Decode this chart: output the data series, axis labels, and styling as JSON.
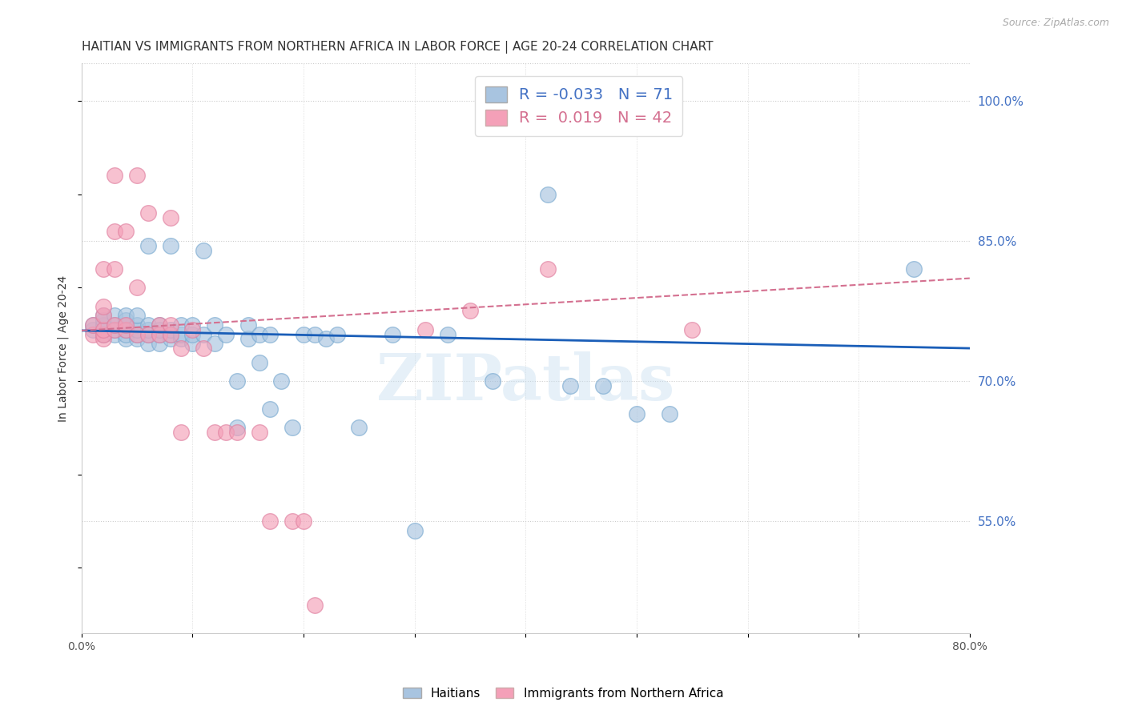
{
  "title": "HAITIAN VS IMMIGRANTS FROM NORTHERN AFRICA IN LABOR FORCE | AGE 20-24 CORRELATION CHART",
  "source": "Source: ZipAtlas.com",
  "ylabel": "In Labor Force | Age 20-24",
  "right_yticks": [
    0.55,
    0.7,
    0.85,
    1.0
  ],
  "right_yticklabels": [
    "55.0%",
    "70.0%",
    "85.0%",
    "100.0%"
  ],
  "xlim": [
    0.0,
    0.8
  ],
  "ylim": [
    0.43,
    1.04
  ],
  "xticks": [
    0.0,
    0.1,
    0.2,
    0.3,
    0.4,
    0.5,
    0.6,
    0.7,
    0.8
  ],
  "xticklabels": [
    "0.0%",
    "",
    "",
    "",
    "",
    "",
    "",
    "",
    "80.0%"
  ],
  "legend_blue_R": "-0.033",
  "legend_blue_N": "71",
  "legend_pink_R": "0.019",
  "legend_pink_N": "42",
  "blue_color": "#a8c4e0",
  "pink_color": "#f4a0b8",
  "blue_line_color": "#1a5eb8",
  "pink_line_color": "#d47090",
  "watermark": "ZIPatlas",
  "blue_trend_x": [
    0.0,
    0.8
  ],
  "blue_trend_y": [
    0.754,
    0.735
  ],
  "pink_trend_x": [
    0.0,
    0.8
  ],
  "pink_trend_y": [
    0.754,
    0.81
  ],
  "blue_x": [
    0.01,
    0.01,
    0.02,
    0.02,
    0.02,
    0.02,
    0.02,
    0.03,
    0.03,
    0.03,
    0.03,
    0.04,
    0.04,
    0.04,
    0.04,
    0.04,
    0.04,
    0.05,
    0.05,
    0.05,
    0.05,
    0.05,
    0.06,
    0.06,
    0.06,
    0.06,
    0.06,
    0.07,
    0.07,
    0.07,
    0.07,
    0.08,
    0.08,
    0.08,
    0.08,
    0.09,
    0.09,
    0.09,
    0.1,
    0.1,
    0.1,
    0.11,
    0.11,
    0.12,
    0.12,
    0.13,
    0.14,
    0.14,
    0.15,
    0.15,
    0.16,
    0.16,
    0.17,
    0.17,
    0.18,
    0.19,
    0.2,
    0.21,
    0.22,
    0.23,
    0.25,
    0.28,
    0.3,
    0.33,
    0.37,
    0.42,
    0.44,
    0.47,
    0.5,
    0.53,
    0.75
  ],
  "blue_y": [
    0.755,
    0.76,
    0.75,
    0.755,
    0.76,
    0.765,
    0.77,
    0.75,
    0.755,
    0.76,
    0.77,
    0.745,
    0.75,
    0.755,
    0.76,
    0.765,
    0.77,
    0.745,
    0.75,
    0.755,
    0.76,
    0.77,
    0.74,
    0.75,
    0.755,
    0.76,
    0.845,
    0.74,
    0.75,
    0.755,
    0.76,
    0.745,
    0.75,
    0.755,
    0.845,
    0.745,
    0.75,
    0.76,
    0.74,
    0.75,
    0.76,
    0.75,
    0.84,
    0.74,
    0.76,
    0.75,
    0.7,
    0.65,
    0.745,
    0.76,
    0.72,
    0.75,
    0.67,
    0.75,
    0.7,
    0.65,
    0.75,
    0.75,
    0.745,
    0.75,
    0.65,
    0.75,
    0.54,
    0.75,
    0.7,
    0.9,
    0.695,
    0.695,
    0.665,
    0.665,
    0.82
  ],
  "pink_x": [
    0.01,
    0.01,
    0.02,
    0.02,
    0.02,
    0.02,
    0.02,
    0.02,
    0.03,
    0.03,
    0.03,
    0.03,
    0.03,
    0.04,
    0.04,
    0.04,
    0.05,
    0.05,
    0.05,
    0.06,
    0.06,
    0.07,
    0.07,
    0.08,
    0.08,
    0.08,
    0.09,
    0.09,
    0.1,
    0.11,
    0.12,
    0.13,
    0.14,
    0.16,
    0.17,
    0.19,
    0.21,
    0.31,
    0.35,
    0.42,
    0.55,
    0.2
  ],
  "pink_y": [
    0.75,
    0.76,
    0.745,
    0.75,
    0.755,
    0.77,
    0.78,
    0.82,
    0.755,
    0.76,
    0.82,
    0.86,
    0.92,
    0.755,
    0.76,
    0.86,
    0.75,
    0.8,
    0.92,
    0.75,
    0.88,
    0.75,
    0.76,
    0.75,
    0.76,
    0.875,
    0.645,
    0.735,
    0.755,
    0.735,
    0.645,
    0.645,
    0.645,
    0.645,
    0.55,
    0.55,
    0.46,
    0.755,
    0.775,
    0.82,
    0.755,
    0.55
  ],
  "grid_color": "#cccccc",
  "background_color": "#ffffff",
  "title_fontsize": 11,
  "axis_label_fontsize": 10,
  "tick_fontsize": 10,
  "legend_fontsize": 13
}
